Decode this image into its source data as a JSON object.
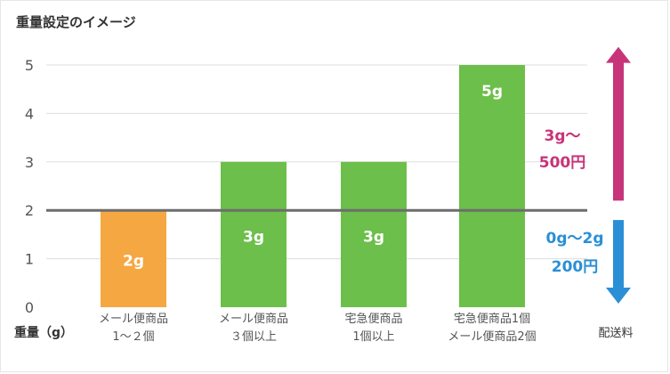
{
  "title": "重量設定のイメージ",
  "chart_data": {
    "type": "bar",
    "title": "重量設定のイメージ",
    "xlabel": "重量（g）",
    "ylabel": "",
    "ylim": [
      0,
      5
    ],
    "yticks": [
      0,
      1,
      2,
      3,
      4,
      5
    ],
    "grid": true,
    "categories": [
      [
        "メール便商品",
        "1〜２個"
      ],
      [
        "メール便商品",
        "３個以上"
      ],
      [
        "宅急便商品",
        "1個以上"
      ],
      [
        "宅急便商品1個",
        "メール便商品2個"
      ]
    ],
    "values": [
      2,
      3,
      3,
      5
    ],
    "data_labels": [
      "2g",
      "3g",
      "3g",
      "5g"
    ],
    "bar_colors": [
      "#f5a742",
      "#6cbf4a",
      "#6cbf4a",
      "#6cbf4a"
    ],
    "threshold": {
      "value": 2,
      "color": "#6d6d6d"
    },
    "right_axis_label": "配送料",
    "annotations": [
      {
        "direction": "up",
        "lines": [
          "3g〜",
          "500円"
        ],
        "color": "#c8347a",
        "from": 2.2,
        "to": 5.3
      },
      {
        "direction": "down",
        "lines": [
          "0g〜2g",
          "200円"
        ],
        "color": "#2b8fd6",
        "from": 1.8,
        "to": 0
      }
    ]
  }
}
